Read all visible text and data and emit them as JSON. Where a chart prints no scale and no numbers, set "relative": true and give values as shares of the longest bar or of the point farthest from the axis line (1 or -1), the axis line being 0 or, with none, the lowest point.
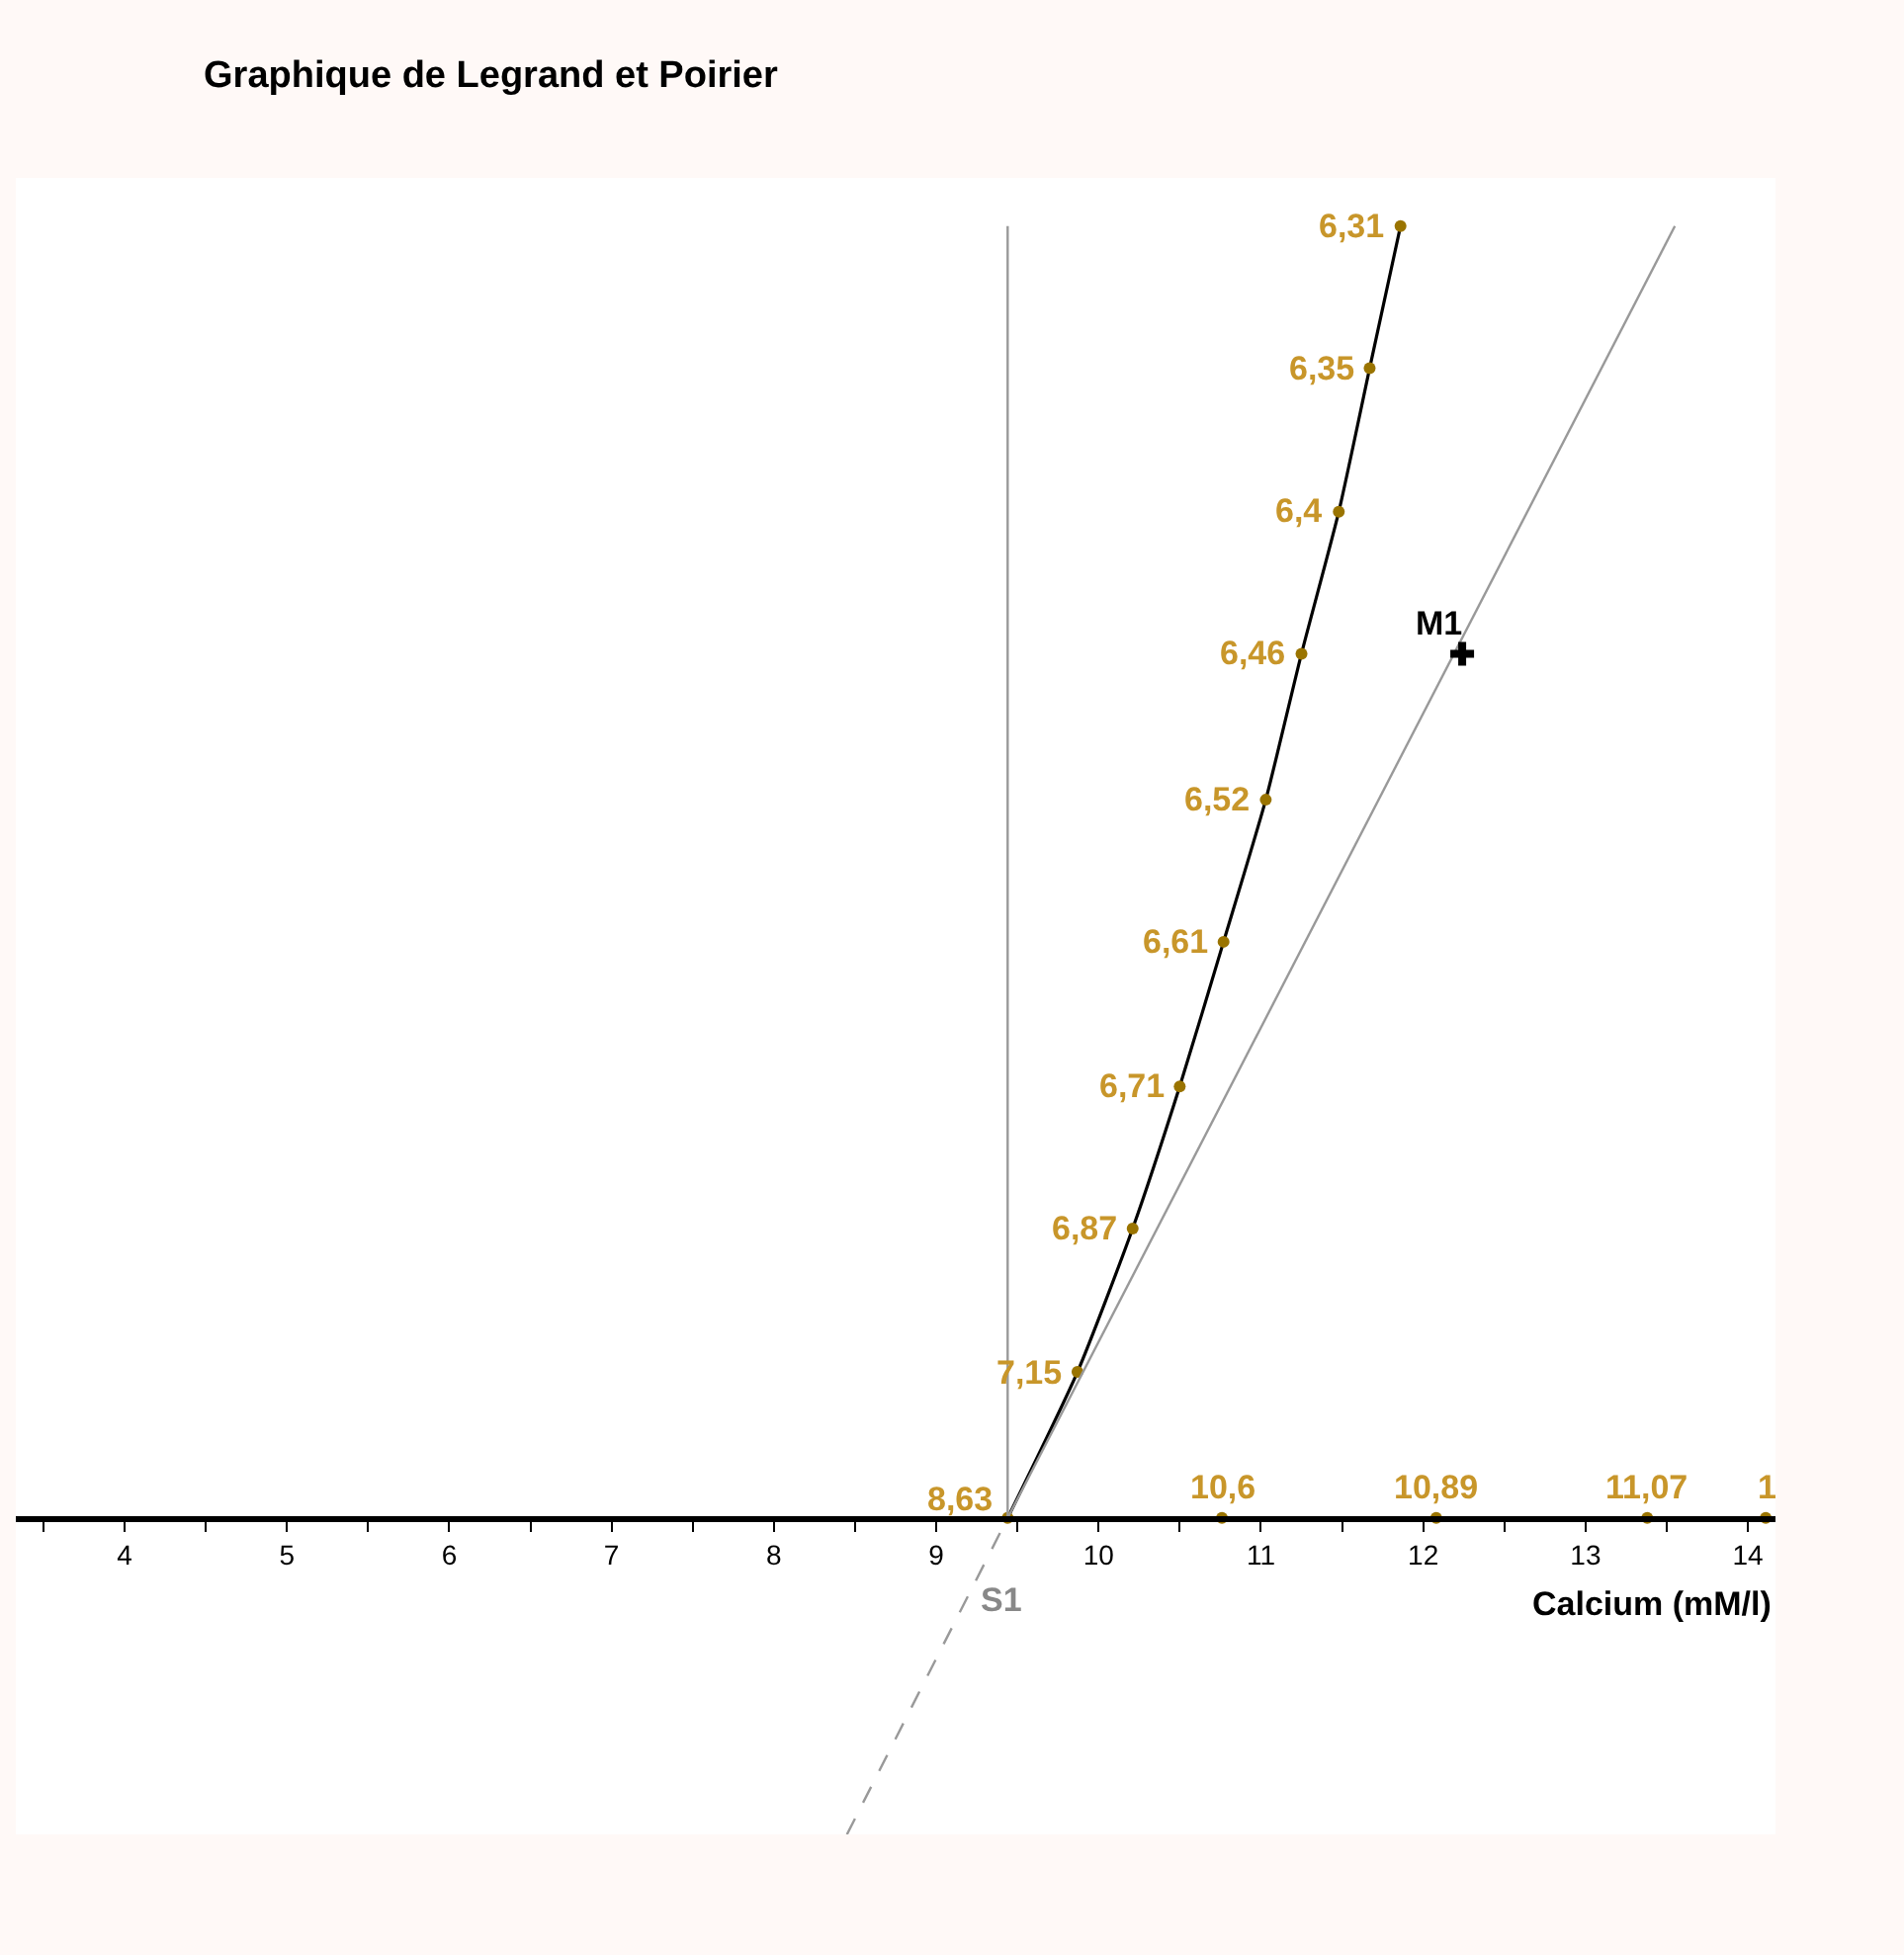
{
  "chart_data": {
    "type": "line",
    "title": "Graphique de Legrand et Poirier",
    "xlabel": "Calcium (mM/l)",
    "relative": true,
    "xlim": [
      3.33,
      14.17
    ],
    "xticks": [
      {
        "value": 3.5,
        "label": null
      },
      4,
      {
        "value": 4.5,
        "label": null
      },
      5,
      {
        "value": 5.5,
        "label": null
      },
      6,
      {
        "value": 6.5,
        "label": null
      },
      7,
      {
        "value": 7.5,
        "label": null
      },
      8,
      {
        "value": 8.5,
        "label": null
      },
      9,
      {
        "value": 9.5,
        "label": null
      },
      10,
      {
        "value": 10.5,
        "label": null
      },
      11,
      {
        "value": 11.5,
        "label": null
      },
      12,
      {
        "value": 12.5,
        "label": null
      },
      13,
      {
        "value": 13.5,
        "label": null
      },
      14
    ],
    "grid": false,
    "series": [
      {
        "color": "#000000",
        "marker": "none",
        "x": [
          9.44,
          9.87,
          10.21,
          10.5,
          10.77,
          11.03,
          11.25,
          11.48,
          11.67,
          11.86
        ],
        "values": [
          0,
          0.113,
          0.224,
          0.334,
          0.446,
          0.556,
          0.669,
          0.779,
          0.89,
          1
        ]
      },
      {
        "type": "scatter",
        "color": "#9a7400",
        "marker": "circle",
        "x": [
          9.44,
          9.87,
          10.21,
          10.5,
          10.77,
          11.03,
          11.25,
          11.48,
          11.67,
          11.86,
          10.76,
          12.08,
          13.38,
          14.11
        ],
        "values": [
          0,
          0.113,
          0.224,
          0.334,
          0.446,
          0.556,
          0.669,
          0.779,
          0.89,
          1,
          0,
          0,
          0,
          0
        ]
      },
      {
        "color": "#999999",
        "marker": "none",
        "x": [
          9.44,
          9.44
        ],
        "values": [
          0,
          1
        ]
      },
      {
        "color": "#999999",
        "marker": "none",
        "x": [
          9.44,
          13.55
        ],
        "values": [
          0,
          1
        ]
      },
      {
        "color": "#999999",
        "marker": "none",
        "line_style": "dashed",
        "x": [
          8.45,
          9.44
        ],
        "values": [
          -0.245,
          0
        ]
      },
      {
        "type": "scatter",
        "color": "#000000",
        "marker": "cross",
        "x": [
          12.24
        ],
        "values": [
          0.669
        ]
      }
    ],
    "annotations": [
      {
        "text": "8,63",
        "x": 9.44,
        "y": 0
      },
      {
        "text": "7,15",
        "x": 9.87,
        "y": 0.113
      },
      {
        "text": "6,87",
        "x": 10.21,
        "y": 0.224
      },
      {
        "text": "6,71",
        "x": 10.5,
        "y": 0.334
      },
      {
        "text": "6,61",
        "x": 10.77,
        "y": 0.446
      },
      {
        "text": "6,52",
        "x": 11.03,
        "y": 0.556
      },
      {
        "text": "6,46",
        "x": 11.25,
        "y": 0.669
      },
      {
        "text": "6,4",
        "x": 11.48,
        "y": 0.779
      },
      {
        "text": "6,35",
        "x": 11.67,
        "y": 0.89
      },
      {
        "text": "6,31",
        "x": 11.86,
        "y": 1
      },
      {
        "text": "10,6",
        "x": 10.76,
        "y": 0
      },
      {
        "text": "10,89",
        "x": 12.08,
        "y": 0
      },
      {
        "text": "11,07",
        "x": 13.38,
        "y": 0
      },
      {
        "text": "1",
        "x": 14.11,
        "y": 0
      },
      {
        "text": "M1",
        "x": 12.24,
        "y": 0.669
      },
      {
        "text": "S1",
        "x": 9.44,
        "y": 0
      }
    ]
  }
}
